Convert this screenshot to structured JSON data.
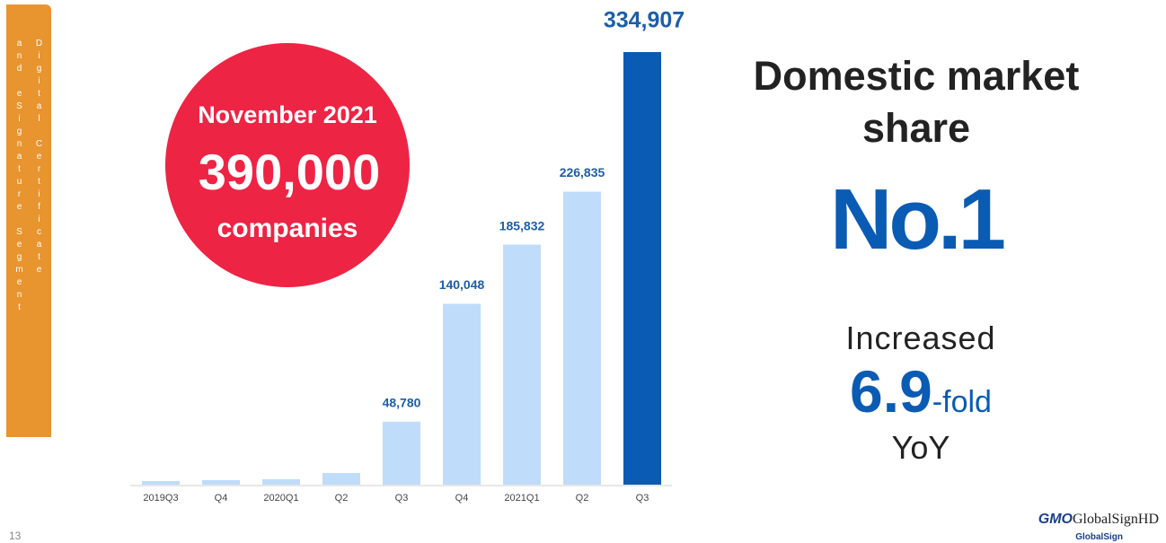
{
  "chart_data": {
    "type": "bar",
    "categories": [
      "2019Q3",
      "Q4",
      "2020Q1",
      "Q2",
      "Q3",
      "Q4",
      "2021Q1",
      "Q2",
      "Q3"
    ],
    "values": [
      2800,
      3500,
      4200,
      9000,
      48780,
      140048,
      185832,
      226835,
      334907
    ],
    "value_labels": [
      null,
      null,
      null,
      null,
      "48,780",
      "140,048",
      "185,832",
      "226,835",
      "334,907"
    ],
    "colors": [
      "#bfdcfb",
      "#bfdcfb",
      "#bfdcfb",
      "#bfdcfb",
      "#bfdcfb",
      "#bfdcfb",
      "#bfdcfb",
      "#bfdcfb",
      "#0a5bb4"
    ]
  },
  "slide": {
    "side_label": [
      "Digital Certificate",
      "and eSignature Segment"
    ],
    "badge": {
      "date": "November 2021",
      "count": "390,000",
      "unit": "companies"
    },
    "headline": "Domestic market share",
    "rank": "No.1",
    "growth": {
      "lead": "Increased",
      "factor": "6.9",
      "suffix": "-fold",
      "period": "YoY"
    },
    "page_number": "13",
    "logo": {
      "brand": "GMO",
      "name": "GlobalSignHD",
      "sub": "GlobalSign"
    }
  }
}
